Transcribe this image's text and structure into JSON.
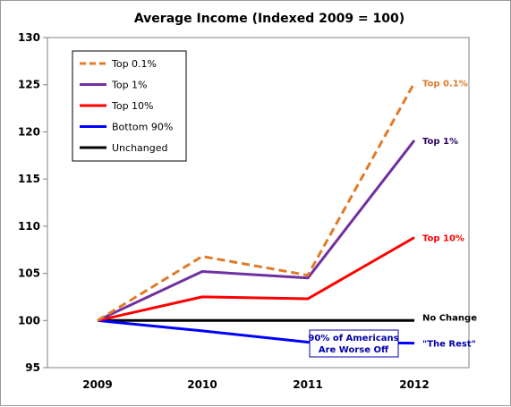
{
  "chart_data": {
    "type": "line",
    "title": "Average Income (Indexed 2009 = 100)",
    "xlabel": "",
    "ylabel": "",
    "categories": [
      "2009",
      "2010",
      "2011",
      "2012"
    ],
    "ylim": [
      95,
      130
    ],
    "yticks": [
      95,
      100,
      105,
      110,
      115,
      120,
      125,
      130
    ],
    "grid": false,
    "legend_position": "top-left",
    "series": [
      {
        "name": "Top 0.1%",
        "values": [
          100,
          106.8,
          104.8,
          125.2
        ],
        "color": "#e07b2a",
        "dash": true,
        "end_label": "Top 0.1%"
      },
      {
        "name": "Top 1%",
        "values": [
          100,
          105.2,
          104.5,
          119.1
        ],
        "color": "#7030a0",
        "dash": false,
        "end_label": "Top 1%"
      },
      {
        "name": "Top 10%",
        "values": [
          100,
          102.5,
          102.3,
          108.8
        ],
        "color": "#ff0000",
        "dash": false,
        "end_label": "Top 10%"
      },
      {
        "name": "Bottom 90%",
        "values": [
          100,
          98.9,
          97.7,
          97.6
        ],
        "color": "#0000ff",
        "dash": false,
        "end_label": "\"The Rest\""
      },
      {
        "name": "Unchanged",
        "values": [
          100,
          100,
          100,
          100
        ],
        "color": "#000000",
        "dash": false,
        "end_label": "No Change"
      }
    ],
    "annotation": {
      "lines": [
        "90% of Americans",
        "Are Worse Off"
      ],
      "color": "#0000aa"
    }
  }
}
